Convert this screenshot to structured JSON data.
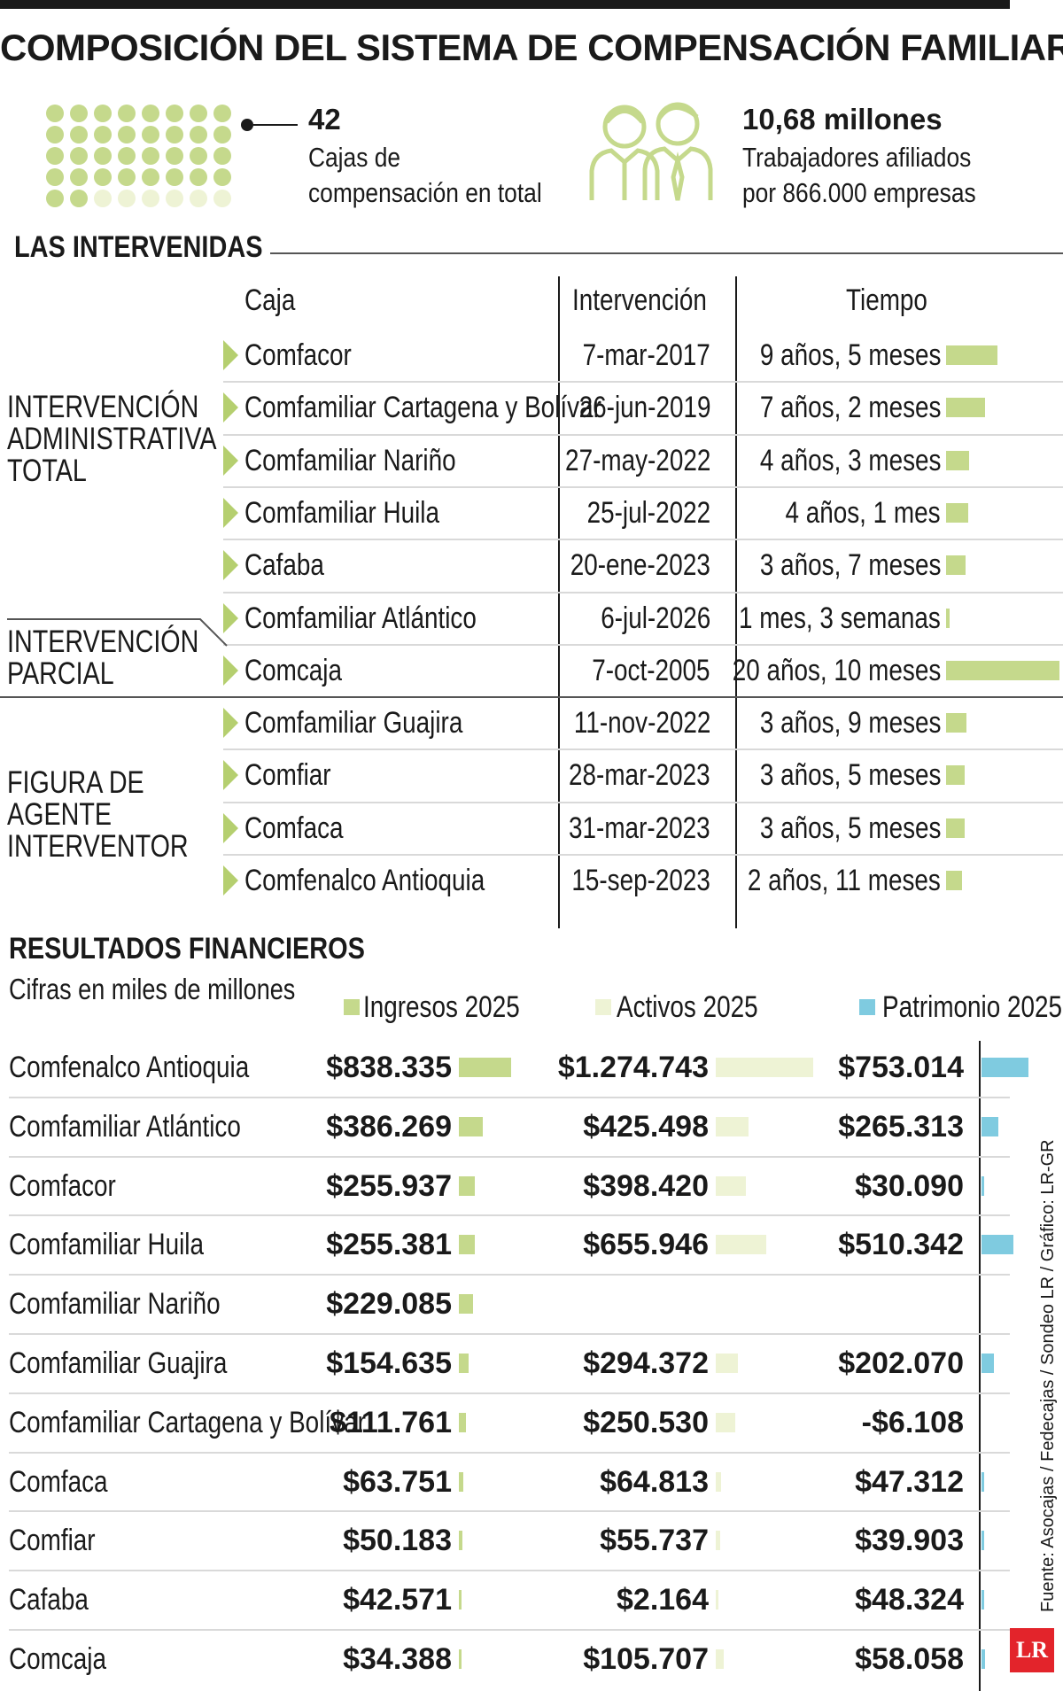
{
  "title": "COMPOSICIÓN DEL SISTEMA DE COMPENSACIÓN FAMILIAR",
  "colors": {
    "green": "#c5d98c",
    "light": "#eef3d5",
    "blue": "#7fcbe0",
    "dark": "#1a1a1a",
    "arrow": "#b5cf6f"
  },
  "stats": {
    "cajas_num": "42",
    "cajas_line1": "Cajas de",
    "cajas_line2": "compensación en total",
    "workers_num": "10,68 millones",
    "workers_line1": "Trabajadores afiliados",
    "workers_line2": "por 866.000 empresas"
  },
  "intervenidas": {
    "heading": "LAS INTERVENIDAS",
    "col_caja": "Caja",
    "col_intervencion": "Intervención",
    "col_tiempo": "Tiempo",
    "groups": [
      {
        "line1": "INTERVENCIÓN",
        "line2": "ADMINISTRATIVA",
        "line3": "TOTAL"
      },
      {
        "line1": "INTERVENCIÓN",
        "line2": "PARCIAL",
        "line3": ""
      },
      {
        "line1": "FIGURA DE",
        "line2": "AGENTE",
        "line3": "INTERVENTOR"
      }
    ],
    "rows": [
      {
        "caja": "Comfacor",
        "fecha": "7-mar-2017",
        "tiempo": "9 años, 5 meses",
        "meses": 113
      },
      {
        "caja": "Comfamiliar Cartagena y Bolívar",
        "fecha": "26-jun-2019",
        "tiempo": "7 años, 2 meses",
        "meses": 86
      },
      {
        "caja": "Comfamiliar Nariño",
        "fecha": "27-may-2022",
        "tiempo": "4 años, 3 meses",
        "meses": 51
      },
      {
        "caja": "Comfamiliar Huila",
        "fecha": "25-jul-2022",
        "tiempo": "4 años, 1 mes",
        "meses": 49
      },
      {
        "caja": "Cafaba",
        "fecha": "20-ene-2023",
        "tiempo": "3 años, 7 meses",
        "meses": 43
      },
      {
        "caja": "Comfamiliar Atlántico",
        "fecha": "6-jul-2026",
        "tiempo": "1 mes, 3 semanas",
        "meses": 1.75
      },
      {
        "caja": "Comcaja",
        "fecha": "7-oct-2005",
        "tiempo": "20 años, 10 meses",
        "meses": 250
      },
      {
        "caja": "Comfamiliar Guajira",
        "fecha": "11-nov-2022",
        "tiempo": "3 años, 9 meses",
        "meses": 45
      },
      {
        "caja": "Comfiar",
        "fecha": "28-mar-2023",
        "tiempo": "3 años, 5 meses",
        "meses": 41
      },
      {
        "caja": "Comfaca",
        "fecha": "31-mar-2023",
        "tiempo": "3 años, 5 meses",
        "meses": 41
      },
      {
        "caja": "Comfenalco Antioquia",
        "fecha": "15-sep-2023",
        "tiempo": "2 años, 11 meses",
        "meses": 35
      }
    ]
  },
  "financieros": {
    "heading": "RESULTADOS FINANCIEROS",
    "subheading": "Cifras en miles de millones",
    "legend": [
      "Ingresos 2025",
      "Activos 2025",
      "Patrimonio 2025"
    ]
  },
  "chart_data": {
    "type": "bar",
    "title": "RESULTADOS FINANCIEROS",
    "subtitle": "Cifras en miles de millones",
    "categories": [
      "Comfenalco Antioquia",
      "Comfamiliar Atlántico",
      "Comfacor",
      "Comfamiliar Huila",
      "Comfamiliar Nariño",
      "Comfamiliar Guajira",
      "Comfamiliar Cartagena y Bolívar",
      "Comfaca",
      "Comfiar",
      "Cafaba",
      "Comcaja"
    ],
    "series": [
      {
        "name": "Ingresos 2025",
        "values": [
          838335,
          386269,
          255937,
          255381,
          229085,
          154635,
          111761,
          63751,
          50183,
          42571,
          34388
        ],
        "labels": [
          "$838.335",
          "$386.269",
          "$255.937",
          "$255.381",
          "$229.085",
          "$154.635",
          "$111.761",
          "$63.751",
          "$50.183",
          "$42.571",
          "$34.388"
        ]
      },
      {
        "name": "Activos 2025",
        "values": [
          1274743,
          425498,
          398420,
          655946,
          null,
          294372,
          250530,
          64813,
          55737,
          2164,
          105707
        ],
        "labels": [
          "$1.274.743",
          "$425.498",
          "$398.420",
          "$655.946",
          "",
          "$294.372",
          "$250.530",
          "$64.813",
          "$55.737",
          "$2.164",
          "$105.707"
        ]
      },
      {
        "name": "Patrimonio 2025",
        "values": [
          753014,
          265313,
          30090,
          510342,
          null,
          202070,
          -6108,
          47312,
          39903,
          48324,
          58058
        ],
        "labels": [
          "$753.014",
          "$265.313",
          "$30.090",
          "$510.342",
          "",
          "$202.070",
          "-$6.108",
          "$47.312",
          "$39.903",
          "$48.324",
          "$58.058"
        ]
      }
    ]
  },
  "source": "Fuente: Asocajas / Fedecajas / Sondeo LR / Gráfico: LR-GR",
  "logo": "LR"
}
